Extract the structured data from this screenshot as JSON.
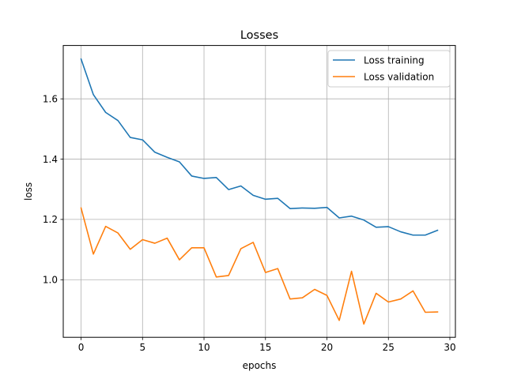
{
  "chart_data": {
    "type": "line",
    "title": "Losses",
    "xlabel": "epochs",
    "ylabel": "loss",
    "xlim": [
      -1.45,
      30.45
    ],
    "ylim": [
      0.809,
      1.777
    ],
    "xticks": [
      0,
      5,
      10,
      15,
      20,
      25,
      30
    ],
    "xtick_labels": [
      "0",
      "5",
      "10",
      "15",
      "20",
      "25",
      "30"
    ],
    "yticks": [
      1.0,
      1.2,
      1.4,
      1.6
    ],
    "ytick_labels": [
      "1.0",
      "1.2",
      "1.4",
      "1.6"
    ],
    "grid": true,
    "legend_position": "top-right",
    "x": [
      0,
      1,
      2,
      3,
      4,
      5,
      6,
      7,
      8,
      9,
      10,
      11,
      12,
      13,
      14,
      15,
      16,
      17,
      18,
      19,
      20,
      21,
      22,
      23,
      24,
      25,
      26,
      27,
      28,
      29
    ],
    "series": [
      {
        "name": "Loss training",
        "color": "#1f77b4",
        "values": [
          1.732,
          1.614,
          1.555,
          1.528,
          1.472,
          1.464,
          1.423,
          1.406,
          1.391,
          1.344,
          1.336,
          1.339,
          1.299,
          1.311,
          1.28,
          1.267,
          1.27,
          1.236,
          1.238,
          1.237,
          1.24,
          1.205,
          1.211,
          1.198,
          1.174,
          1.176,
          1.159,
          1.148,
          1.148,
          1.164
        ]
      },
      {
        "name": "Loss validation",
        "color": "#ff7f0e",
        "values": [
          1.238,
          1.085,
          1.177,
          1.155,
          1.101,
          1.133,
          1.121,
          1.138,
          1.066,
          1.106,
          1.106,
          1.009,
          1.014,
          1.103,
          1.124,
          1.024,
          1.037,
          0.936,
          0.94,
          0.968,
          0.948,
          0.865,
          1.028,
          0.853,
          0.955,
          0.926,
          0.936,
          0.963,
          0.892,
          0.893
        ]
      }
    ]
  }
}
